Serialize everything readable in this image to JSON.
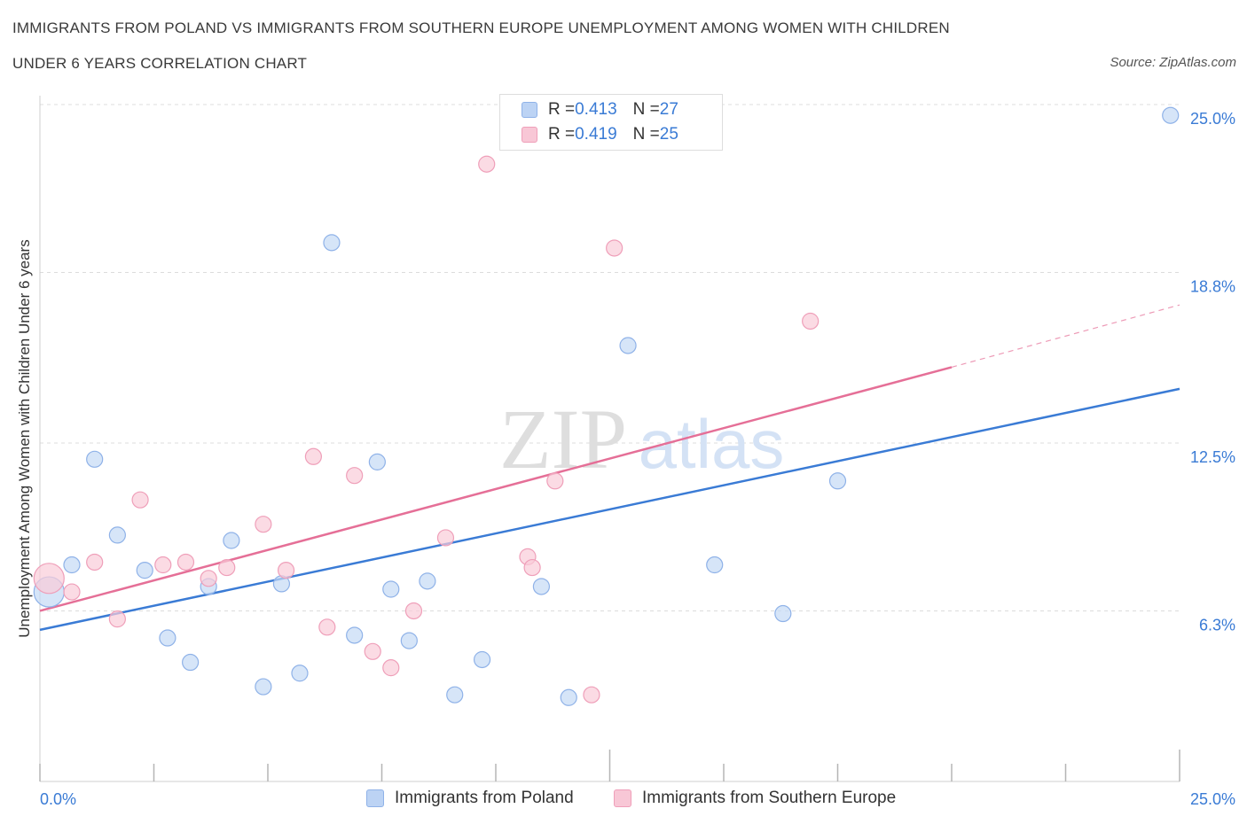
{
  "title_line1": "IMMIGRANTS FROM POLAND VS IMMIGRANTS FROM SOUTHERN EUROPE UNEMPLOYMENT AMONG WOMEN WITH CHILDREN",
  "title_line2": "UNDER 6 YEARS CORRELATION CHART",
  "source": "Source: ZipAtlas.com",
  "watermark": {
    "zip": "ZIP",
    "atlas": "atlas"
  },
  "legend": {
    "r_label": "R = ",
    "n_label": "N = ",
    "poland": {
      "r": "0.413",
      "n": "27"
    },
    "southern_europe": {
      "r": "0.419",
      "n": "25"
    }
  },
  "colors": {
    "poland": "#3a7bd5",
    "southern_europe": "#e56f97",
    "tick_label": "#3a7bd5"
  },
  "chart_data": {
    "type": "scatter",
    "xlabel": "",
    "ylabel": "Unemployment Among Women with Children Under 6 years",
    "xlim": [
      0,
      25
    ],
    "ylim": [
      0,
      25
    ],
    "x_tick_labels": [
      "0.0%",
      "25.0%"
    ],
    "y_ticks": [
      6.3,
      12.5,
      18.8,
      25.0
    ],
    "y_tick_labels": [
      "6.3%",
      "12.5%",
      "18.8%",
      "25.0%"
    ],
    "grid": true,
    "legend_position": "top-center",
    "series": [
      {
        "name": "Immigrants from Poland",
        "color": "#3a7bd5",
        "points": [
          [
            0.2,
            7.0
          ],
          [
            0.7,
            8.0
          ],
          [
            1.2,
            11.9
          ],
          [
            1.7,
            9.1
          ],
          [
            2.3,
            7.8
          ],
          [
            2.8,
            5.3
          ],
          [
            3.3,
            4.4
          ],
          [
            3.7,
            7.2
          ],
          [
            4.2,
            8.9
          ],
          [
            4.9,
            3.5
          ],
          [
            5.3,
            7.3
          ],
          [
            5.7,
            4.0
          ],
          [
            6.4,
            19.9
          ],
          [
            6.9,
            5.4
          ],
          [
            7.4,
            11.8
          ],
          [
            7.7,
            7.1
          ],
          [
            8.1,
            5.2
          ],
          [
            8.5,
            7.4
          ],
          [
            9.1,
            3.2
          ],
          [
            9.7,
            4.5
          ],
          [
            11.0,
            7.2
          ],
          [
            11.6,
            3.1
          ],
          [
            12.9,
            16.1
          ],
          [
            14.8,
            8.0
          ],
          [
            16.3,
            6.2
          ],
          [
            17.5,
            11.1
          ],
          [
            24.8,
            24.6
          ]
        ],
        "trendline": {
          "x": [
            0,
            25
          ],
          "y": [
            5.6,
            14.5
          ]
        }
      },
      {
        "name": "Immigrants from Southern Europe",
        "color": "#e56f97",
        "points": [
          [
            0.2,
            7.5
          ],
          [
            0.7,
            7.0
          ],
          [
            1.2,
            8.1
          ],
          [
            1.7,
            6.0
          ],
          [
            2.2,
            10.4
          ],
          [
            2.7,
            8.0
          ],
          [
            3.2,
            8.1
          ],
          [
            3.7,
            7.5
          ],
          [
            4.1,
            7.9
          ],
          [
            4.9,
            9.5
          ],
          [
            5.4,
            7.8
          ],
          [
            6.0,
            12.0
          ],
          [
            6.3,
            5.7
          ],
          [
            6.9,
            11.3
          ],
          [
            7.3,
            4.8
          ],
          [
            7.7,
            4.2
          ],
          [
            8.2,
            6.3
          ],
          [
            8.9,
            9.0
          ],
          [
            9.8,
            22.8
          ],
          [
            10.7,
            8.3
          ],
          [
            10.8,
            7.9
          ],
          [
            11.3,
            11.1
          ],
          [
            12.1,
            3.2
          ],
          [
            12.6,
            19.7
          ],
          [
            16.9,
            17.0
          ]
        ],
        "trendline": {
          "x": [
            0,
            20
          ],
          "y": [
            6.3,
            15.3
          ]
        },
        "trendline_extension": {
          "x": [
            20,
            25
          ],
          "y": [
            15.3,
            17.6
          ]
        }
      }
    ]
  }
}
